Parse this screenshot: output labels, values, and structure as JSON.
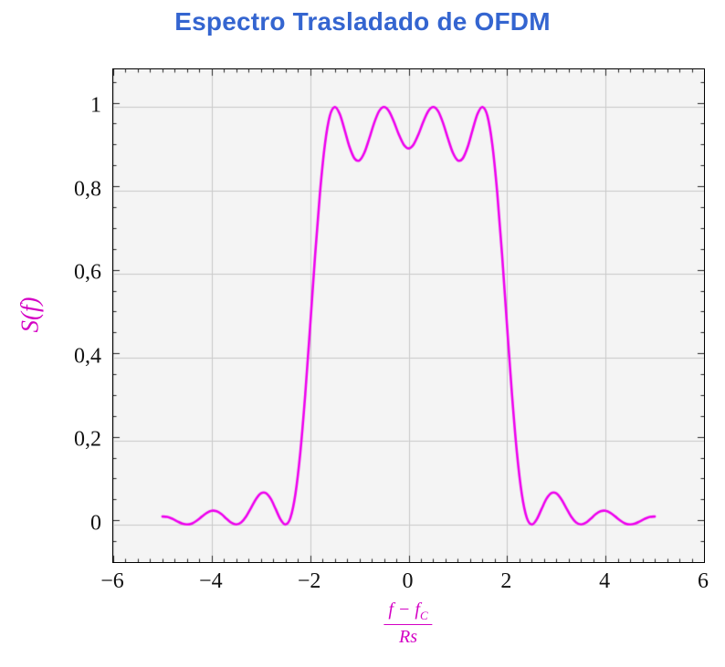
{
  "chart_data": {
    "type": "line",
    "title": "Espectro Trasladado de OFDM",
    "ylabel": "S(f)",
    "xlabel": {
      "display": "(f − f_C) / Rs",
      "numerator_main": "f − f",
      "numerator_sub": "C",
      "denominator": "Rs"
    },
    "xlim": [
      -6,
      6
    ],
    "ylim": [
      -0.09,
      1.09
    ],
    "x_ticks": [
      -6,
      -4,
      -2,
      0,
      2,
      4,
      6
    ],
    "x_tick_labels": [
      "−6",
      "−4",
      "−2",
      "0",
      "2",
      "4",
      "6"
    ],
    "y_ticks": [
      0,
      0.2,
      0.4,
      0.6,
      0.8,
      1
    ],
    "y_tick_labels": [
      "0",
      "0,2",
      "0,4",
      "0,6",
      "0,8",
      "1"
    ],
    "x_minor_step": 0.25,
    "y_minor_step": 0.05,
    "grid": true,
    "legend": "none",
    "colors": {
      "title": "#3465d0",
      "curve": "#ee00ee",
      "axis_label": "#d400c4",
      "tick_text": "#111111",
      "tick_mark": "#222222",
      "grid": "#c9c9c9",
      "plot_bg": "#f4f4f4",
      "border": "#000000"
    },
    "series": [
      {
        "name": "S(f)",
        "x_start": -5.0,
        "x_step": 0.1,
        "y": [
          0.019,
          0.018,
          0.0137,
          0.0076,
          0.0022,
          0.0,
          0.0025,
          0.0095,
          0.019,
          0.0279,
          0.0328,
          0.0317,
          0.0246,
          0.0139,
          0.0041,
          0.0,
          0.0049,
          0.0192,
          0.0399,
          0.0608,
          0.0745,
          0.0753,
          0.0615,
          0.0369,
          0.0118,
          0.0,
          0.0164,
          0.0724,
          0.1722,
          0.311,
          0.4748,
          0.6434,
          0.7947,
          0.9101,
          0.9787,
          1.0,
          0.9833,
          0.9451,
          0.9042,
          0.8767,
          0.8718,
          0.89,
          0.924,
          0.9614,
          0.9897,
          1.0,
          0.9902,
          0.965,
          0.9344,
          0.9099,
          0.9006,
          0.9099,
          0.9344,
          0.965,
          0.9902,
          1.0,
          0.9897,
          0.9614,
          0.924,
          0.89,
          0.8718,
          0.8767,
          0.9042,
          0.9451,
          0.9833,
          1.0,
          0.9787,
          0.9101,
          0.7947,
          0.6434,
          0.4748,
          0.311,
          0.1722,
          0.0724,
          0.0164,
          0.0,
          0.0118,
          0.0369,
          0.0615,
          0.0753,
          0.0745,
          0.0608,
          0.0399,
          0.0192,
          0.0049,
          0.0,
          0.0041,
          0.0139,
          0.0246,
          0.0317,
          0.0328,
          0.0279,
          0.019,
          0.0095,
          0.0025,
          0.0,
          0.0022,
          0.0076,
          0.0137,
          0.018,
          0.019
        ]
      }
    ]
  }
}
